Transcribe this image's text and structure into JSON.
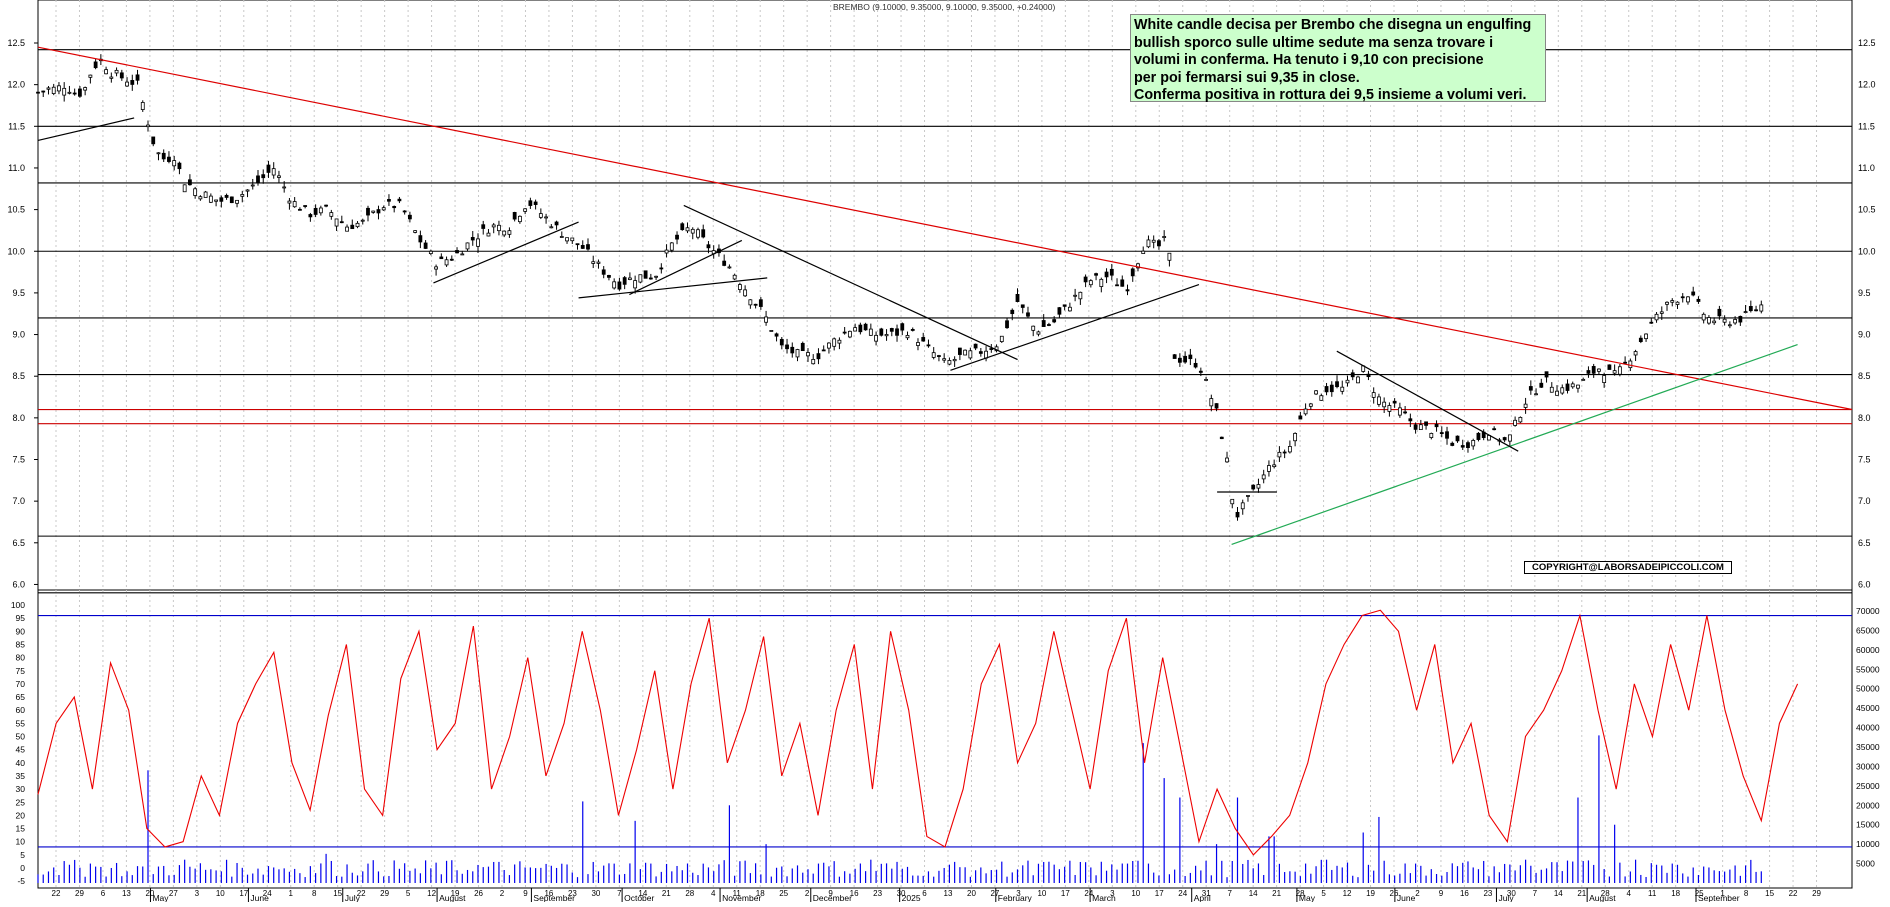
{
  "chart_data": [
    {
      "type": "candlestick",
      "title": "BREMBO (9.10000, 9.35000, 9.10000, 9.35000, +0.24000)",
      "ylim": [
        5.9,
        12.6
      ],
      "y_ticks": [
        "12.5",
        "12.0",
        "11.5",
        "11.0",
        "10.5",
        "10.0",
        "9.5",
        "9.0",
        "8.5",
        "8.0",
        "7.5",
        "7.0",
        "6.5",
        "6.0"
      ],
      "y_tick_values": [
        12.5,
        12.0,
        11.5,
        11.0,
        10.5,
        10.0,
        9.5,
        9.0,
        8.5,
        8.0,
        7.5,
        7.0,
        6.5,
        6.0
      ],
      "x_month_labels": [
        "May",
        "June",
        "July",
        "August",
        "September",
        "October",
        "November",
        "December",
        "2025",
        "February",
        "March",
        "April",
        "May",
        "June",
        "July",
        "August",
        "September"
      ],
      "x_day_labels": [
        "22",
        "29",
        "6",
        "13",
        "20",
        "27",
        "3",
        "10",
        "17",
        "24",
        "1",
        "8",
        "15",
        "22",
        "29",
        "5",
        "12",
        "19",
        "26",
        "2",
        "9",
        "16",
        "23",
        "30",
        "7",
        "14",
        "21",
        "28",
        "4",
        "11",
        "18",
        "25",
        "2",
        "9",
        "16",
        "23",
        "30",
        "6",
        "13",
        "20",
        "27",
        "3",
        "10",
        "17",
        "24",
        "3",
        "10",
        "17",
        "24",
        "31",
        "7",
        "14",
        "21",
        "28",
        "5",
        "12",
        "19",
        "26",
        "2",
        "9",
        "16",
        "23",
        "30",
        "7",
        "14",
        "21",
        "28",
        "4",
        "11",
        "18",
        "25",
        "1",
        "8",
        "15",
        "22",
        "29"
      ],
      "horizontal_levels": [
        {
          "value": 12.42,
          "color": "#000000"
        },
        {
          "value": 11.5,
          "color": "#000000"
        },
        {
          "value": 10.82,
          "color": "#000000"
        },
        {
          "value": 10.0,
          "color": "#000000"
        },
        {
          "value": 9.2,
          "color": "#000000"
        },
        {
          "value": 8.52,
          "color": "#000000"
        },
        {
          "value": 8.1,
          "color": "#cc0000"
        },
        {
          "value": 7.93,
          "color": "#cc0000"
        },
        {
          "value": 6.58,
          "color": "#000000"
        },
        {
          "value": 5.9,
          "color": "#000000"
        }
      ],
      "trendlines": [
        {
          "color": "#dd0000",
          "from": [
            0,
            12.45
          ],
          "to": [
            100,
            8.1
          ]
        },
        {
          "color": "#22aa55",
          "from": [
            65.8,
            6.48
          ],
          "to": [
            97,
            8.88
          ]
        },
        {
          "color": "#000000",
          "from": [
            0,
            11.33
          ],
          "to": [
            5.3,
            11.6
          ]
        },
        {
          "color": "#000000",
          "from": [
            21.8,
            9.62
          ],
          "to": [
            29.8,
            10.35
          ]
        },
        {
          "color": "#000000",
          "from": [
            29.8,
            9.44
          ],
          "to": [
            40.2,
            9.68
          ]
        },
        {
          "color": "#000000",
          "from": [
            32.6,
            9.48
          ],
          "to": [
            38.8,
            10.13
          ]
        },
        {
          "color": "#000000",
          "from": [
            35.6,
            10.55
          ],
          "to": [
            54,
            8.7
          ]
        },
        {
          "color": "#000000",
          "from": [
            50.3,
            8.57
          ],
          "to": [
            64,
            9.6
          ]
        },
        {
          "color": "#000000",
          "from": [
            71.6,
            8.8
          ],
          "to": [
            81.6,
            7.6
          ]
        },
        {
          "color": "#000000",
          "from": [
            65,
            7.11
          ],
          "to": [
            68.3,
            7.11
          ]
        }
      ],
      "close_path": [
        [
          0,
          11.9
        ],
        [
          0.5,
          11.95
        ],
        [
          1,
          11.95
        ],
        [
          1.5,
          12.0
        ],
        [
          2,
          11.9
        ],
        [
          2.5,
          11.9
        ],
        [
          3,
          12.2
        ],
        [
          3.5,
          12.3
        ],
        [
          4,
          12.15
        ],
        [
          4.5,
          12.1
        ],
        [
          5,
          12.05
        ],
        [
          5.5,
          12.0
        ],
        [
          6,
          11.6
        ],
        [
          6.5,
          11.2
        ],
        [
          7,
          11.1
        ],
        [
          7.5,
          11.15
        ],
        [
          8,
          10.85
        ],
        [
          9,
          10.7
        ],
        [
          10,
          10.6
        ],
        [
          11,
          10.65
        ],
        [
          12,
          10.8
        ],
        [
          13,
          11.0
        ],
        [
          14,
          10.6
        ],
        [
          15,
          10.45
        ],
        [
          16,
          10.5
        ],
        [
          17,
          10.3
        ],
        [
          18,
          10.35
        ],
        [
          19,
          10.55
        ],
        [
          20,
          10.55
        ],
        [
          20.5,
          10.35
        ],
        [
          21,
          10.15
        ],
        [
          22,
          9.85
        ],
        [
          23,
          9.95
        ],
        [
          24,
          10.15
        ],
        [
          25,
          10.3
        ],
        [
          26,
          10.3
        ],
        [
          27,
          10.6
        ],
        [
          28,
          10.4
        ],
        [
          29,
          10.2
        ],
        [
          30,
          10.05
        ],
        [
          31,
          9.8
        ],
        [
          32,
          9.6
        ],
        [
          33,
          9.7
        ],
        [
          34,
          9.7
        ],
        [
          35,
          10.1
        ],
        [
          36,
          10.3
        ],
        [
          37,
          10.05
        ],
        [
          38,
          9.85
        ],
        [
          39,
          9.55
        ],
        [
          40,
          9.25
        ],
        [
          41,
          8.85
        ],
        [
          42,
          8.75
        ],
        [
          43,
          8.75
        ],
        [
          44,
          8.95
        ],
        [
          45,
          9.1
        ],
        [
          46,
          9.0
        ],
        [
          47,
          9.0
        ],
        [
          48,
          9.05
        ],
        [
          49,
          8.85
        ],
        [
          50,
          8.65
        ],
        [
          51,
          8.75
        ],
        [
          52,
          8.8
        ],
        [
          53,
          8.9
        ],
        [
          54,
          9.4
        ],
        [
          55,
          9.05
        ],
        [
          56,
          9.15
        ],
        [
          57,
          9.4
        ],
        [
          58,
          9.65
        ],
        [
          59,
          9.7
        ],
        [
          60,
          9.55
        ],
        [
          61,
          10.1
        ],
        [
          62,
          10.05
        ],
        [
          62.3,
          10.3
        ],
        [
          62.6,
          8.75
        ],
        [
          63,
          8.7
        ],
        [
          64,
          8.65
        ],
        [
          65,
          8.05
        ],
        [
          65.5,
          7.55
        ],
        [
          66,
          6.8
        ],
        [
          67,
          7.1
        ],
        [
          68,
          7.45
        ],
        [
          69,
          7.65
        ],
        [
          70,
          8.2
        ],
        [
          71,
          8.35
        ],
        [
          72,
          8.35
        ],
        [
          73,
          8.6
        ],
        [
          74,
          8.2
        ],
        [
          75,
          8.1
        ],
        [
          76,
          7.9
        ],
        [
          77,
          7.85
        ],
        [
          78,
          7.7
        ],
        [
          79,
          7.7
        ],
        [
          80,
          7.85
        ],
        [
          81,
          7.7
        ],
        [
          82,
          8.2
        ],
        [
          83,
          8.45
        ],
        [
          84,
          8.35
        ],
        [
          85,
          8.4
        ],
        [
          86,
          8.6
        ],
        [
          87,
          8.5
        ],
        [
          88,
          8.8
        ],
        [
          89,
          9.15
        ],
        [
          90,
          9.4
        ],
        [
          91,
          9.5
        ],
        [
          92,
          9.2
        ],
        [
          93,
          9.15
        ],
        [
          94,
          9.2
        ],
        [
          95,
          9.35
        ]
      ]
    },
    {
      "type": "line",
      "ylim": [
        0,
        100
      ],
      "y_ticks": [
        "100",
        "95",
        "90",
        "85",
        "80",
        "75",
        "70",
        "65",
        "60",
        "55",
        "50",
        "45",
        "40",
        "35",
        "30",
        "25",
        "20",
        "15",
        "10",
        "5",
        "0",
        "-5"
      ],
      "y_tick_values": [
        100,
        95,
        90,
        85,
        80,
        75,
        70,
        65,
        60,
        55,
        50,
        45,
        40,
        35,
        30,
        25,
        20,
        15,
        10,
        5,
        0,
        -5
      ],
      "y2_ticks": [
        "70000",
        "65000",
        "60000",
        "55000",
        "50000",
        "45000",
        "40000",
        "35000",
        "30000",
        "25000",
        "20000",
        "15000",
        "10000",
        "5000"
      ],
      "y2_tick_values": [
        70000,
        65000,
        60000,
        55000,
        50000,
        45000,
        40000,
        35000,
        30000,
        25000,
        20000,
        15000,
        10000,
        5000
      ],
      "levels": [
        96,
        8
      ],
      "oscillator": [
        [
          0,
          28
        ],
        [
          1,
          55
        ],
        [
          2,
          65
        ],
        [
          3,
          30
        ],
        [
          4,
          78
        ],
        [
          5,
          60
        ],
        [
          6,
          15
        ],
        [
          7,
          8
        ],
        [
          8,
          10
        ],
        [
          9,
          35
        ],
        [
          10,
          20
        ],
        [
          11,
          55
        ],
        [
          12,
          70
        ],
        [
          13,
          82
        ],
        [
          14,
          40
        ],
        [
          15,
          22
        ],
        [
          16,
          58
        ],
        [
          17,
          85
        ],
        [
          18,
          30
        ],
        [
          19,
          20
        ],
        [
          20,
          72
        ],
        [
          21,
          90
        ],
        [
          22,
          45
        ],
        [
          23,
          55
        ],
        [
          24,
          92
        ],
        [
          25,
          30
        ],
        [
          26,
          50
        ],
        [
          27,
          80
        ],
        [
          28,
          35
        ],
        [
          29,
          55
        ],
        [
          30,
          90
        ],
        [
          31,
          60
        ],
        [
          32,
          20
        ],
        [
          33,
          45
        ],
        [
          34,
          75
        ],
        [
          35,
          30
        ],
        [
          36,
          70
        ],
        [
          37,
          95
        ],
        [
          38,
          40
        ],
        [
          39,
          60
        ],
        [
          40,
          88
        ],
        [
          41,
          35
        ],
        [
          42,
          55
        ],
        [
          43,
          20
        ],
        [
          44,
          60
        ],
        [
          45,
          85
        ],
        [
          46,
          30
        ],
        [
          47,
          90
        ],
        [
          48,
          60
        ],
        [
          49,
          12
        ],
        [
          50,
          8
        ],
        [
          51,
          30
        ],
        [
          52,
          70
        ],
        [
          53,
          85
        ],
        [
          54,
          40
        ],
        [
          55,
          55
        ],
        [
          56,
          90
        ],
        [
          57,
          60
        ],
        [
          58,
          30
        ],
        [
          59,
          75
        ],
        [
          60,
          95
        ],
        [
          61,
          40
        ],
        [
          62,
          80
        ],
        [
          63,
          45
        ],
        [
          64,
          10
        ],
        [
          65,
          30
        ],
        [
          66,
          15
        ],
        [
          67,
          5
        ],
        [
          68,
          12
        ],
        [
          69,
          20
        ],
        [
          70,
          40
        ],
        [
          71,
          70
        ],
        [
          72,
          85
        ],
        [
          73,
          96
        ],
        [
          74,
          98
        ],
        [
          75,
          90
        ],
        [
          76,
          60
        ],
        [
          77,
          85
        ],
        [
          78,
          40
        ],
        [
          79,
          55
        ],
        [
          80,
          20
        ],
        [
          81,
          10
        ],
        [
          82,
          50
        ],
        [
          83,
          60
        ],
        [
          84,
          75
        ],
        [
          85,
          96
        ],
        [
          86,
          60
        ],
        [
          87,
          30
        ],
        [
          88,
          70
        ],
        [
          89,
          50
        ],
        [
          90,
          85
        ],
        [
          91,
          60
        ],
        [
          92,
          96
        ],
        [
          93,
          60
        ],
        [
          94,
          35
        ],
        [
          95,
          18
        ],
        [
          96,
          55
        ],
        [
          97,
          70
        ]
      ],
      "volume": [
        [
          1,
          4000
        ],
        [
          3,
          5000
        ],
        [
          5,
          3000
        ],
        [
          6,
          29000
        ],
        [
          8,
          6000
        ],
        [
          10,
          3000
        ],
        [
          13,
          4000
        ],
        [
          16,
          7500
        ],
        [
          18,
          3000
        ],
        [
          21,
          2500
        ],
        [
          24,
          3000
        ],
        [
          27,
          4000
        ],
        [
          30,
          21000
        ],
        [
          31,
          3000
        ],
        [
          33,
          16000
        ],
        [
          35,
          3000
        ],
        [
          38,
          20000
        ],
        [
          40,
          10000
        ],
        [
          43,
          5000
        ],
        [
          46,
          6000
        ],
        [
          49,
          3000
        ],
        [
          52,
          4000
        ],
        [
          55,
          2000
        ],
        [
          58,
          4000
        ],
        [
          60,
          5000
        ],
        [
          61,
          36000
        ],
        [
          62,
          27000
        ],
        [
          63,
          22000
        ],
        [
          65,
          10000
        ],
        [
          66,
          22000
        ],
        [
          68,
          12000
        ],
        [
          70,
          5000
        ],
        [
          71,
          6000
        ],
        [
          72,
          4000
        ],
        [
          73,
          13000
        ],
        [
          74,
          17000
        ],
        [
          76,
          5000
        ],
        [
          79,
          4000
        ],
        [
          82,
          6000
        ],
        [
          85,
          22000
        ],
        [
          86,
          38000
        ],
        [
          87,
          15000
        ],
        [
          88,
          6000
        ],
        [
          90,
          5000
        ],
        [
          92,
          4000
        ],
        [
          95,
          3000
        ]
      ]
    }
  ],
  "annotation": {
    "lines": [
      "White candle decisa per Brembo che disegna un engulfing",
      "bullish sporco sulle ultime sedute ma senza trovare i",
      "volumi in conferma. Ha tenuto i 9,10 con precisione",
      "per poi fermarsi sui 9,35 in close.",
      "Conferma positiva in rottura dei 9,5 insieme a volumi veri."
    ]
  },
  "copyright": "COPYRIGHT@LABORSADEIPICCOLI.COM",
  "colors": {
    "trend_red": "#dd0000",
    "trend_green": "#22aa55",
    "oscillator": "#ee0000",
    "volume": "#0000ee",
    "level_blue": "#0000cc",
    "note_bg": "#ccffcc"
  }
}
